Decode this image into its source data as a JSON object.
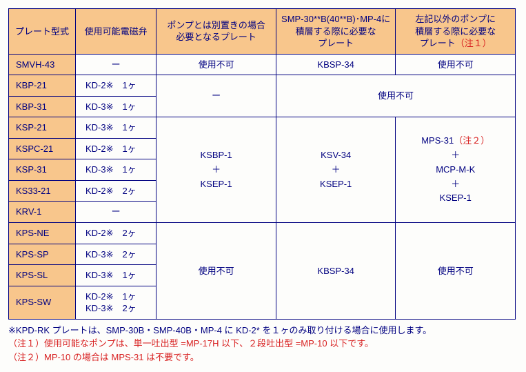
{
  "colors": {
    "header_bg": "#f8c68c",
    "border": "#000080",
    "text": "#000080",
    "accent_red": "#d82020",
    "page_bg": "#fdfdfb"
  },
  "columns": {
    "c0": "プレート型式",
    "c1": "使用可能電磁弁",
    "c2": "ポンプとは別置きの場合\n必要となるプレート",
    "c3": "SMP-30**B(40**B)･MP-4に\n積層する際に必要な\nプレート",
    "c4_pre": "左記以外のポンプに\n積層する際に必要な\nプレート",
    "c4_note": "（注１）"
  },
  "rows": {
    "smvh43": {
      "model": "SMVH-43",
      "valve": "ー",
      "c2": "使用不可",
      "c3": "KBSP-34",
      "c4": "使用不可"
    },
    "kbp21": {
      "model": "KBP-21",
      "valve": "KD-2※　1ヶ"
    },
    "kbp31": {
      "model": "KBP-31",
      "valve": "KD-3※　1ヶ"
    },
    "ksp21": {
      "model": "KSP-21",
      "valve": "KD-3※　1ヶ"
    },
    "kspc21": {
      "model": "KSPC-21",
      "valve": "KD-2※　1ヶ"
    },
    "ksp31": {
      "model": "KSP-31",
      "valve": "KD-3※　1ヶ"
    },
    "ks3321": {
      "model": "KS33-21",
      "valve": "KD-2※　2ヶ"
    },
    "krv1": {
      "model": "KRV-1",
      "valve": "ー"
    },
    "kpsne": {
      "model": "KPS-NE",
      "valve": "KD-2※　2ヶ"
    },
    "kpssp": {
      "model": "KPS-SP",
      "valve": "KD-3※　2ヶ"
    },
    "kpssl": {
      "model": "KPS-SL",
      "valve": "KD-3※　1ヶ"
    },
    "kpssw": {
      "model": "KPS-SW",
      "valve": "KD-2※　1ヶ\nKD-3※　2ヶ"
    }
  },
  "merged": {
    "kbp_c2": "ー",
    "kbp_c34": "使用不可",
    "ksp_c2": "KSBP-1\n＋\nKSEP-1",
    "ksp_c3": "KSV-34\n＋\nKSEP-1",
    "ksp_c4_l1": "MPS-31",
    "ksp_c4_l1_note": "（注２）",
    "ksp_c4_rest": "＋\nMCP-M-K\n＋\nKSEP-1",
    "kps_c2": "使用不可",
    "kps_c3": "KBSP-34",
    "kps_c4": "使用不可"
  },
  "notes": {
    "n0": "※KPD-RK プレートは、SMP-30B・SMP-40B・MP-4 に KD-2* を１ヶのみ取り付ける場合に使用します。",
    "n1": "（注１）使用可能なポンプは、単一吐出型 =MP-17H 以下、２段吐出型 =MP-10 以下です。",
    "n2": "（注２）MP-10 の場合は MPS-31 は不要です。"
  }
}
